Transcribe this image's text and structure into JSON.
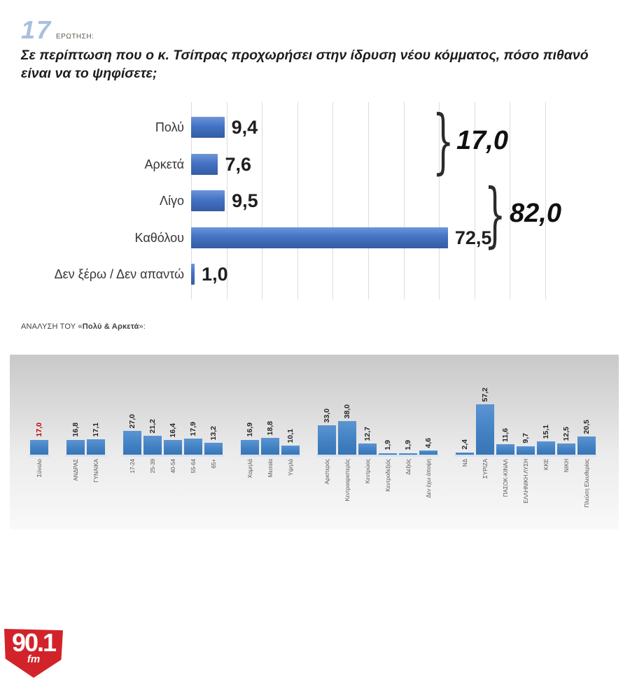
{
  "header": {
    "question_number": "17",
    "question_label": "ΕΡΩΤΗΣΗ:",
    "question_text": "Σε περίπτωση που ο κ. Τσίπρας προχωρήσει στην ίδρυση νέου κόμματος, πόσο πιθανό είναι να το ψηφίσετε;"
  },
  "analysis": {
    "prefix": "ΑΝΑΛΥΣΗ ΤΟΥ «",
    "highlight": "Πολύ & Αρκετά",
    "suffix": "»:"
  },
  "logo": {
    "station": "90.1",
    "band": "fm"
  },
  "colors": {
    "bar_blue": "#4472c4",
    "bar_blue_small": "#4080c2",
    "highlight_red": "#c00000",
    "number_blue": "#a9bfdd",
    "logo_red": "#d2232a",
    "gridline": "#dcdcdc"
  },
  "chart_data": [
    {
      "type": "bar",
      "orientation": "horizontal",
      "title": "",
      "categories": [
        "Πολύ",
        "Αρκετά",
        "Λίγο",
        "Καθόλου",
        "Δεν ξέρω / Δεν απαντώ"
      ],
      "values": [
        9.4,
        7.6,
        9.5,
        72.5,
        1.0
      ],
      "value_labels": [
        "9,4",
        "7,6",
        "9,5",
        "72,5",
        "1,0"
      ],
      "xlim": [
        0,
        100
      ],
      "grid": true,
      "legend": "none",
      "annotations": [
        {
          "label": "17,0",
          "meaning": "Πολύ + Αρκετά"
        },
        {
          "label": "82,0",
          "meaning": "Λίγο + Καθόλου"
        }
      ]
    },
    {
      "type": "bar",
      "orientation": "vertical",
      "title": "ΑΝΑΛΥΣΗ ΤΟΥ «Πολύ & Αρκετά»:",
      "ylim": [
        0,
        60
      ],
      "grid": false,
      "legend": "none",
      "groups": [
        {
          "bars": [
            {
              "label": "Σύνολο",
              "value": 17.0,
              "value_label": "17,0",
              "highlight": true
            }
          ]
        },
        {
          "bars": [
            {
              "label": "ΑΝΔΡΑΣ",
              "value": 16.8,
              "value_label": "16,8"
            },
            {
              "label": "ΓΥΝΑΙΚΑ",
              "value": 17.1,
              "value_label": "17,1"
            }
          ]
        },
        {
          "bars": [
            {
              "label": "17-24",
              "value": 27.0,
              "value_label": "27,0"
            },
            {
              "label": "25-39",
              "value": 21.2,
              "value_label": "21,2"
            },
            {
              "label": "40-54",
              "value": 16.4,
              "value_label": "16,4"
            },
            {
              "label": "55-64",
              "value": 17.9,
              "value_label": "17,9"
            },
            {
              "label": "65+",
              "value": 13.2,
              "value_label": "13,2"
            }
          ]
        },
        {
          "bars": [
            {
              "label": "Χαμηλά",
              "value": 16.9,
              "value_label": "16,9"
            },
            {
              "label": "Μεσαία",
              "value": 18.8,
              "value_label": "18,8"
            },
            {
              "label": "Υψηλά",
              "value": 10.1,
              "value_label": "10,1"
            }
          ]
        },
        {
          "bars": [
            {
              "label": "Αριστερός",
              "value": 33.0,
              "value_label": "33,0"
            },
            {
              "label": "Κεντροαριστερός",
              "value": 38.0,
              "value_label": "38,0"
            },
            {
              "label": "Κεντρώος",
              "value": 12.7,
              "value_label": "12,7"
            },
            {
              "label": "Κεντροδεξιός",
              "value": 1.9,
              "value_label": "1,9"
            },
            {
              "label": "Δεξιός",
              "value": 1.9,
              "value_label": "1,9"
            },
            {
              "label": "Δεν έχω άποψη",
              "value": 4.6,
              "value_label": "4,6"
            }
          ]
        },
        {
          "bars": [
            {
              "label": "ΝΔ",
              "value": 2.4,
              "value_label": "2,4"
            },
            {
              "label": "ΣΥΡΙΖΑ",
              "value": 57.2,
              "value_label": "57,2"
            },
            {
              "label": "ΠΑΣΟΚ-ΚΙΝΑΛ",
              "value": 11.6,
              "value_label": "11,6"
            },
            {
              "label": "ΕΛΛΗΝΙΚΗ ΛΥΣΗ",
              "value": 9.7,
              "value_label": "9,7"
            },
            {
              "label": "ΚΚΕ",
              "value": 15.1,
              "value_label": "15,1"
            },
            {
              "label": "ΝΙΚΗ",
              "value": 12.5,
              "value_label": "12,5"
            },
            {
              "label": "Πλεύση Ελευθερίας",
              "value": 20.5,
              "value_label": "20,5"
            }
          ]
        }
      ]
    }
  ]
}
